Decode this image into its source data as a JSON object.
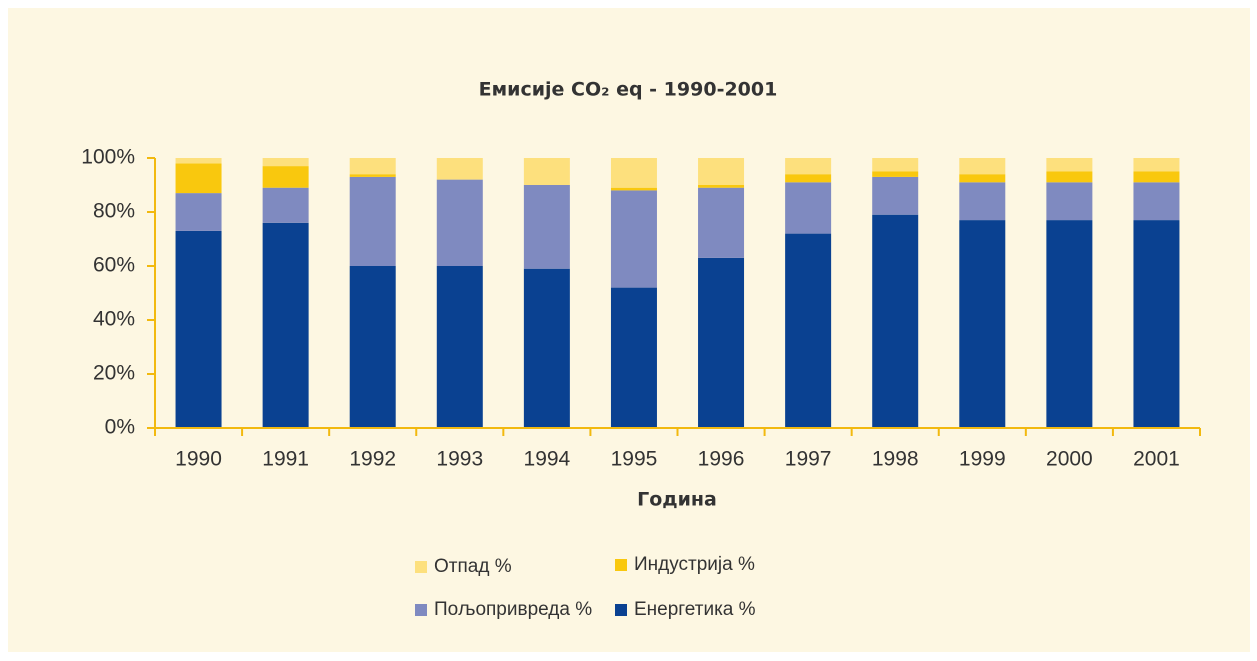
{
  "chart_data": {
    "type": "stacked_bar",
    "title": "Емисије CO₂ eq - 1990-2001",
    "x_label": "Година",
    "categories": [
      "1990",
      "1991",
      "1992",
      "1993",
      "1994",
      "1995",
      "1996",
      "1997",
      "1998",
      "1999",
      "2000",
      "2001"
    ],
    "series": [
      {
        "name": "Отпад %",
        "color": "#fde07d",
        "values": [
          2,
          3,
          6,
          8,
          10,
          11,
          10,
          6,
          5,
          6,
          5,
          5
        ]
      },
      {
        "name": "Индустрија %",
        "color": "#f9c80e",
        "values": [
          11,
          8,
          1,
          0,
          0,
          1,
          1,
          3,
          2,
          3,
          4,
          4
        ]
      },
      {
        "name": "Пољопривреда %",
        "color": "#7f8ac0",
        "values": [
          14,
          13,
          33,
          32,
          31,
          36,
          26,
          19,
          14,
          14,
          14,
          14
        ]
      },
      {
        "name": "Енергетика %",
        "color": "#0a4191",
        "values": [
          73,
          76,
          60,
          60,
          59,
          52,
          63,
          72,
          79,
          77,
          77,
          77
        ]
      }
    ],
    "ylim": [
      0,
      100
    ],
    "yticks": [
      {
        "value": 0,
        "label": "0%"
      },
      {
        "value": 20,
        "label": "20%"
      },
      {
        "value": 40,
        "label": "40%"
      },
      {
        "value": 60,
        "label": "60%"
      },
      {
        "value": 80,
        "label": "80%"
      },
      {
        "value": 100,
        "label": "100%"
      }
    ],
    "axis_color": "#f2b90f"
  }
}
